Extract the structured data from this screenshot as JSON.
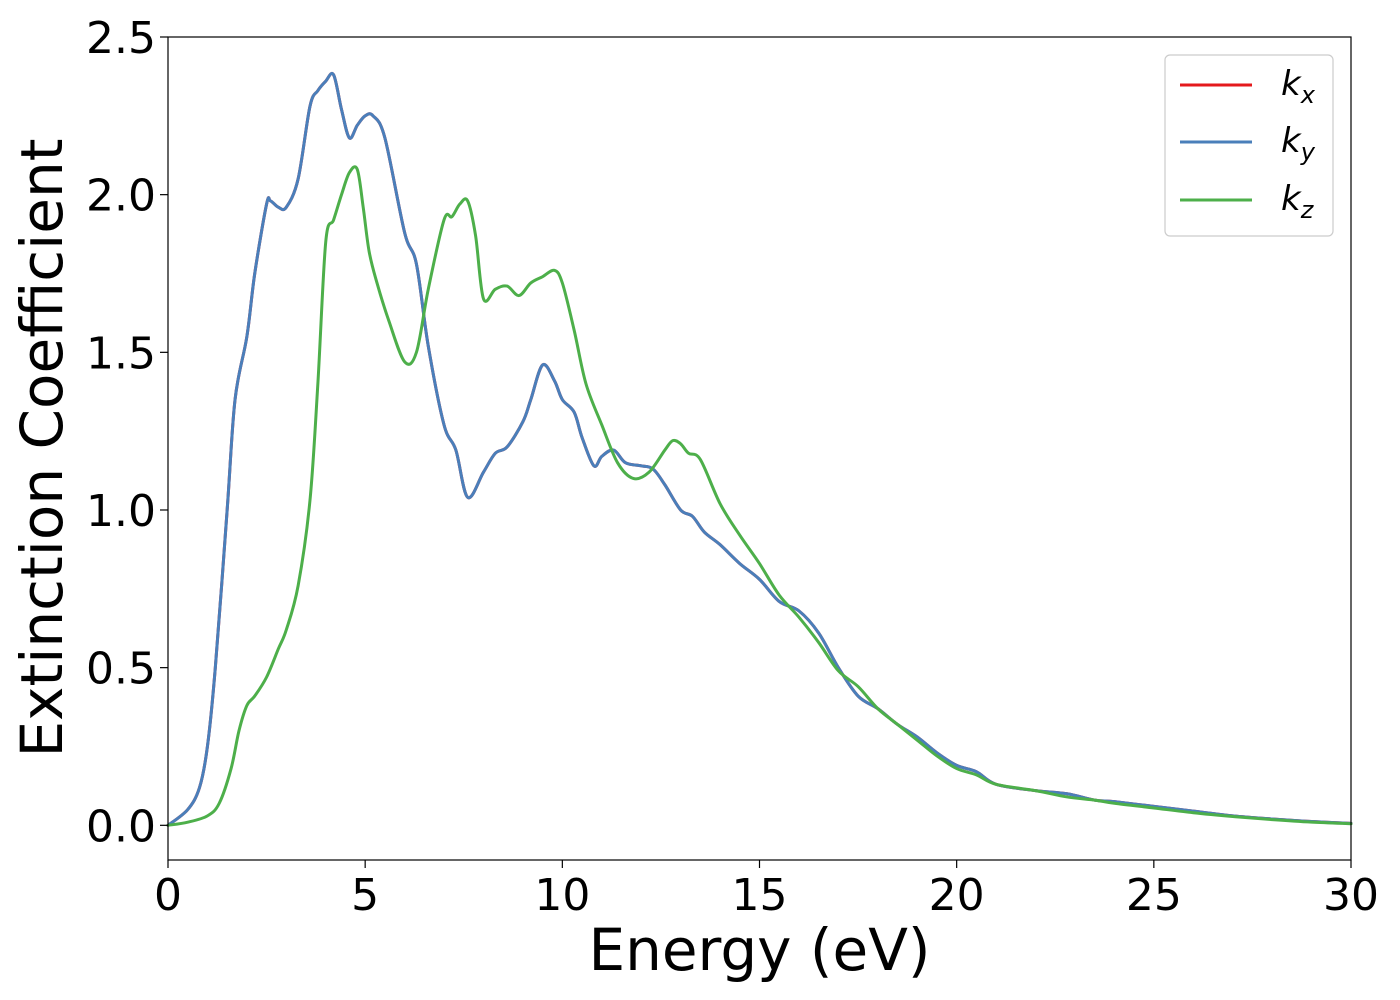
{
  "chart_data": {
    "type": "line",
    "title": "",
    "xlabel": "Energy (eV)",
    "ylabel": "Extinction Coefficient",
    "xlim": [
      0,
      30
    ],
    "ylim": [
      -0.11,
      2.5
    ],
    "xticks": [
      0,
      5,
      10,
      15,
      20,
      25,
      30
    ],
    "xtick_labels": [
      "0",
      "5",
      "10",
      "15",
      "20",
      "25",
      "30"
    ],
    "yticks": [
      0.0,
      0.5,
      1.0,
      1.5,
      2.0,
      2.5
    ],
    "ytick_labels": [
      "0.0",
      "0.5",
      "1.0",
      "1.5",
      "2.0",
      "2.5"
    ],
    "grid": false,
    "legend_position": "top-right",
    "series": [
      {
        "name": "k",
        "subscript": "x",
        "color": "#e41a1c",
        "x": [
          0,
          0.5,
          0.8,
          1.0,
          1.2,
          1.5,
          1.7,
          2.0,
          2.2,
          2.5,
          2.6,
          2.8,
          3.0,
          3.3,
          3.6,
          3.8,
          4.0,
          4.2,
          4.4,
          4.6,
          4.8,
          5.0,
          5.2,
          5.5,
          6.0,
          6.3,
          6.6,
          7.0,
          7.3,
          7.6,
          8.0,
          8.3,
          8.6,
          9.0,
          9.2,
          9.5,
          9.8,
          10.0,
          10.3,
          10.5,
          10.8,
          11.0,
          11.3,
          11.6,
          12.0,
          12.3,
          12.6,
          13.0,
          13.3,
          13.6,
          14.0,
          14.5,
          15.0,
          15.5,
          16.0,
          16.5,
          17.0,
          17.5,
          18.0,
          18.5,
          19.0,
          19.5,
          20.0,
          20.5,
          21.0,
          22.0,
          22.8,
          23.5,
          24.0,
          25.0,
          26.0,
          27.0,
          28.0,
          29.0,
          30.0
        ],
        "values": [
          0.0,
          0.05,
          0.12,
          0.25,
          0.5,
          1.0,
          1.35,
          1.55,
          1.75,
          1.97,
          1.98,
          1.96,
          1.96,
          2.05,
          2.28,
          2.33,
          2.36,
          2.38,
          2.27,
          2.18,
          2.22,
          2.25,
          2.25,
          2.18,
          1.88,
          1.78,
          1.52,
          1.27,
          1.19,
          1.04,
          1.12,
          1.18,
          1.2,
          1.28,
          1.35,
          1.46,
          1.41,
          1.35,
          1.31,
          1.23,
          1.14,
          1.17,
          1.19,
          1.15,
          1.14,
          1.13,
          1.08,
          1.0,
          0.98,
          0.93,
          0.89,
          0.83,
          0.78,
          0.71,
          0.68,
          0.61,
          0.5,
          0.41,
          0.37,
          0.32,
          0.28,
          0.23,
          0.19,
          0.17,
          0.13,
          0.11,
          0.1,
          0.08,
          0.075,
          0.06,
          0.045,
          0.03,
          0.02,
          0.012,
          0.006
        ]
      },
      {
        "name": "k",
        "subscript": "y",
        "color": "#4a7fba",
        "x": [
          0,
          0.5,
          0.8,
          1.0,
          1.2,
          1.5,
          1.7,
          2.0,
          2.2,
          2.5,
          2.6,
          2.8,
          3.0,
          3.3,
          3.6,
          3.8,
          4.0,
          4.2,
          4.4,
          4.6,
          4.8,
          5.0,
          5.2,
          5.5,
          6.0,
          6.3,
          6.6,
          7.0,
          7.3,
          7.6,
          8.0,
          8.3,
          8.6,
          9.0,
          9.2,
          9.5,
          9.8,
          10.0,
          10.3,
          10.5,
          10.8,
          11.0,
          11.3,
          11.6,
          12.0,
          12.3,
          12.6,
          13.0,
          13.3,
          13.6,
          14.0,
          14.5,
          15.0,
          15.5,
          16.0,
          16.5,
          17.0,
          17.5,
          18.0,
          18.5,
          19.0,
          19.5,
          20.0,
          20.5,
          21.0,
          22.0,
          22.8,
          23.5,
          24.0,
          25.0,
          26.0,
          27.0,
          28.0,
          29.0,
          30.0
        ],
        "values": [
          0.0,
          0.05,
          0.12,
          0.25,
          0.5,
          1.0,
          1.35,
          1.55,
          1.75,
          1.97,
          1.98,
          1.96,
          1.96,
          2.05,
          2.28,
          2.33,
          2.36,
          2.38,
          2.27,
          2.18,
          2.22,
          2.25,
          2.25,
          2.18,
          1.88,
          1.78,
          1.52,
          1.27,
          1.19,
          1.04,
          1.12,
          1.18,
          1.2,
          1.28,
          1.35,
          1.46,
          1.41,
          1.35,
          1.31,
          1.23,
          1.14,
          1.17,
          1.19,
          1.15,
          1.14,
          1.13,
          1.08,
          1.0,
          0.98,
          0.93,
          0.89,
          0.83,
          0.78,
          0.71,
          0.68,
          0.61,
          0.5,
          0.41,
          0.37,
          0.32,
          0.28,
          0.23,
          0.19,
          0.17,
          0.13,
          0.11,
          0.1,
          0.08,
          0.075,
          0.06,
          0.045,
          0.03,
          0.02,
          0.012,
          0.006
        ]
      },
      {
        "name": "k",
        "subscript": "z",
        "color": "#4daf4a",
        "x": [
          0,
          0.5,
          1.0,
          1.3,
          1.6,
          1.8,
          2.0,
          2.2,
          2.5,
          2.8,
          3.0,
          3.3,
          3.6,
          3.8,
          4.0,
          4.2,
          4.4,
          4.6,
          4.8,
          4.95,
          5.1,
          5.3,
          5.6,
          6.0,
          6.3,
          6.6,
          7.0,
          7.2,
          7.4,
          7.6,
          7.8,
          8.0,
          8.3,
          8.6,
          8.9,
          9.2,
          9.5,
          9.8,
          10.0,
          10.3,
          10.6,
          11.0,
          11.4,
          11.8,
          12.2,
          12.6,
          12.8,
          13.0,
          13.2,
          13.5,
          14.0,
          14.5,
          15.0,
          15.5,
          16.0,
          16.5,
          17.0,
          17.5,
          18.0,
          18.5,
          19.0,
          19.5,
          20.0,
          20.5,
          21.0,
          22.0,
          22.8,
          23.5,
          24.0,
          25.0,
          26.0,
          27.0,
          28.0,
          29.0,
          30.0
        ],
        "values": [
          0.0,
          0.01,
          0.03,
          0.07,
          0.18,
          0.3,
          0.38,
          0.41,
          0.47,
          0.56,
          0.62,
          0.76,
          1.03,
          1.4,
          1.85,
          1.92,
          2.0,
          2.07,
          2.08,
          1.96,
          1.82,
          1.72,
          1.6,
          1.47,
          1.5,
          1.7,
          1.92,
          1.93,
          1.97,
          1.98,
          1.87,
          1.67,
          1.7,
          1.71,
          1.68,
          1.72,
          1.74,
          1.76,
          1.72,
          1.57,
          1.4,
          1.27,
          1.15,
          1.1,
          1.12,
          1.19,
          1.22,
          1.21,
          1.18,
          1.16,
          1.02,
          0.92,
          0.83,
          0.73,
          0.66,
          0.58,
          0.49,
          0.44,
          0.37,
          0.32,
          0.27,
          0.22,
          0.18,
          0.16,
          0.13,
          0.11,
          0.09,
          0.08,
          0.07,
          0.055,
          0.04,
          0.028,
          0.018,
          0.01,
          0.005
        ]
      }
    ]
  }
}
